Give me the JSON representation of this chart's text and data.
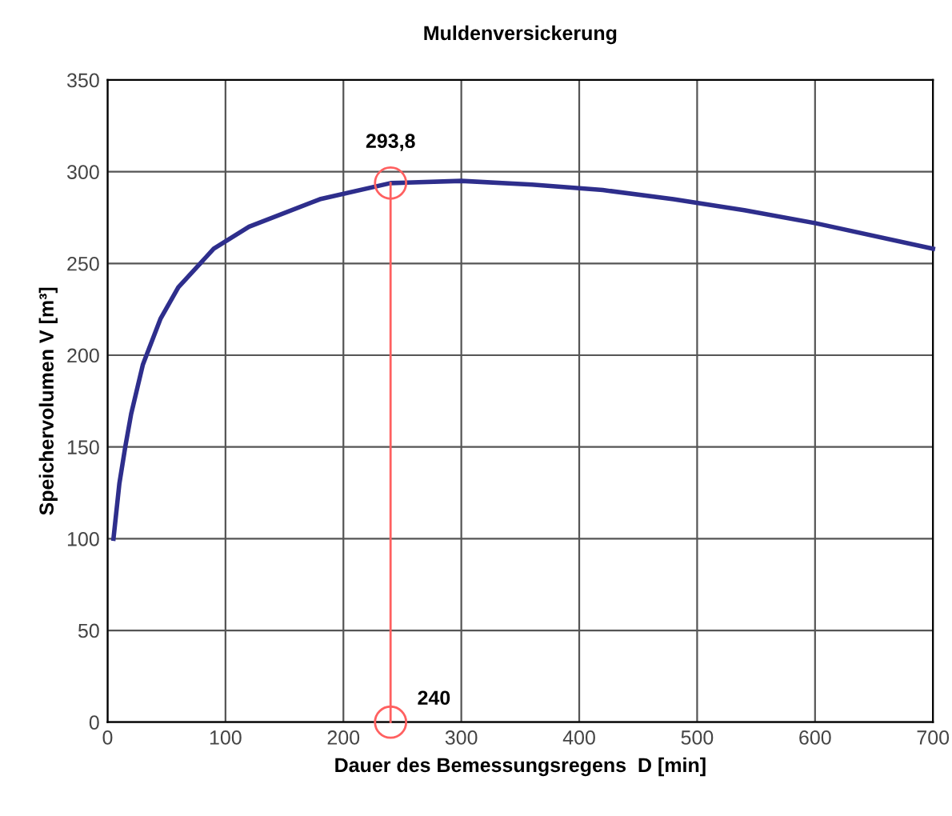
{
  "chart_data": {
    "type": "line",
    "title": "Muldenversickerung",
    "xlabel": "Dauer des Bemessungsregens  D [min]",
    "ylabel": "Speichervolumen V [m³]",
    "series": [
      {
        "color": "#2e2e8c",
        "marker": "none",
        "x": [
          5,
          10,
          15,
          20,
          30,
          45,
          60,
          90,
          120,
          180,
          240,
          300,
          360,
          420,
          480,
          540,
          600,
          700
        ],
        "values": [
          100,
          130,
          150,
          168,
          195,
          220,
          237,
          258,
          270,
          285,
          293.8,
          295,
          293,
          290,
          285,
          279,
          272,
          258
        ]
      },
      {
        "color": "#ff6060",
        "marker": "circle",
        "x": [
          240,
          240
        ],
        "values": [
          0,
          293.8
        ]
      }
    ],
    "annotations": [
      {
        "text": "293,8",
        "x": 240,
        "y": 293.8
      },
      {
        "text": "240",
        "x": 240,
        "y": 0
      }
    ],
    "xlim": [
      0,
      700
    ],
    "xticks": [
      0,
      100,
      200,
      300,
      400,
      500,
      600,
      700
    ],
    "ylim": [
      0,
      350
    ],
    "yticks": [
      0,
      50,
      100,
      150,
      200,
      250,
      300,
      350
    ],
    "grid": true
  }
}
